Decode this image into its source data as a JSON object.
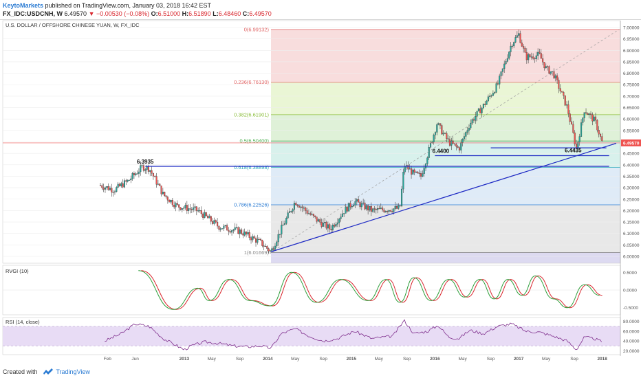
{
  "header": {
    "author": "KeytoMarkets",
    "published": "published on TradingView.com, January 03, 2018 16:42 EST",
    "symbol": "FX_IDC:USDCNH, W",
    "last": "6.49570",
    "change": "−0.00530 (−0.08%)",
    "open": "6.51000",
    "high": "6.51890",
    "low": "6.48460",
    "close": "6.49570",
    "ohlc_labels": {
      "open": "O:",
      "high": "H:",
      "low": "L:",
      "close": "C:"
    }
  },
  "footer": {
    "created_with": "Created with",
    "brand": "TradingView"
  },
  "colors": {
    "up": "#26a69a",
    "down": "#ef5350",
    "candle_wick": "#444444",
    "trend": "#1f2bc4",
    "rvgi_main": "#2e9e3a",
    "rvgi_signal": "#d9272e",
    "rsi_line": "#7e2d8c",
    "rsi_band": "#e8dcf5",
    "price_line": "#ef5350",
    "last_badge": "#ef5350"
  },
  "chart_data": [
    {
      "type": "candlestick",
      "title": "U.S. DOLLAR / OFFSHORE CHINESE YUAN, W, FX_IDC",
      "ylim": [
        5.97,
        7.03
      ],
      "y_ticks": [
        "7.00000",
        "6.95000",
        "6.90000",
        "6.85000",
        "6.80000",
        "6.75000",
        "6.70000",
        "6.65000",
        "6.60000",
        "6.55000",
        "6.50000",
        "6.45000",
        "6.40000",
        "6.35000",
        "6.30000",
        "6.25000",
        "6.20000",
        "6.15000",
        "6.10000",
        "6.05000",
        "6.00000"
      ],
      "x_ticks": [
        "Feb",
        "Jun",
        "2013",
        "May",
        "Sep",
        "2014",
        "May",
        "Sep",
        "2015",
        "May",
        "Sep",
        "2016",
        "May",
        "Sep",
        "2017",
        "May",
        "Sep",
        "2018"
      ],
      "last_value": "6.49570",
      "price_path": [
        [
          "2012-01-01",
          6.31
        ],
        [
          "2012-03-01",
          6.29
        ],
        [
          "2012-05-01",
          6.33
        ],
        [
          "2012-07-01",
          6.39
        ],
        [
          "2012-08-01",
          6.385
        ],
        [
          "2012-10-01",
          6.27
        ],
        [
          "2012-12-01",
          6.22
        ],
        [
          "2013-03-01",
          6.2
        ],
        [
          "2013-06-01",
          6.13
        ],
        [
          "2013-09-01",
          6.11
        ],
        [
          "2013-12-01",
          6.06
        ],
        [
          "2014-01-15",
          6.02
        ],
        [
          "2014-03-01",
          6.12
        ],
        [
          "2014-05-01",
          6.24
        ],
        [
          "2014-08-01",
          6.16
        ],
        [
          "2014-10-01",
          6.12
        ],
        [
          "2014-12-01",
          6.2
        ],
        [
          "2015-01-15",
          6.24
        ],
        [
          "2015-04-01",
          6.2
        ],
        [
          "2015-08-01",
          6.21
        ],
        [
          "2015-08-20",
          6.4
        ],
        [
          "2015-10-01",
          6.36
        ],
        [
          "2015-11-01",
          6.35
        ],
        [
          "2016-01-10",
          6.58
        ],
        [
          "2016-03-01",
          6.5
        ],
        [
          "2016-04-15",
          6.47
        ],
        [
          "2016-06-01",
          6.58
        ],
        [
          "2016-08-01",
          6.66
        ],
        [
          "2016-10-01",
          6.75
        ],
        [
          "2016-12-01",
          6.93
        ],
        [
          "2017-01-01",
          6.97
        ],
        [
          "2017-02-01",
          6.87
        ],
        [
          "2017-04-01",
          6.88
        ],
        [
          "2017-05-01",
          6.82
        ],
        [
          "2017-06-01",
          6.8
        ],
        [
          "2017-08-01",
          6.65
        ],
        [
          "2017-09-10",
          6.47
        ],
        [
          "2017-10-15",
          6.64
        ],
        [
          "2017-12-01",
          6.59
        ],
        [
          "2018-01-01",
          6.4957
        ]
      ],
      "fibonacci": [
        {
          "ratio": "0",
          "label": "0(6.99132)",
          "value": 6.99132,
          "color": "#e06666",
          "fill": "#f7d9d9"
        },
        {
          "ratio": "0.236",
          "label": "0.236(6.76130)",
          "value": 6.7613,
          "color": "#e06666",
          "fill": "#e8f5d0"
        },
        {
          "ratio": "0.382",
          "label": "0.382(6.61901)",
          "value": 6.61901,
          "color": "#8bbd3c",
          "fill": "#dcf0d4"
        },
        {
          "ratio": "0.5",
          "label": "0.5(6.50400)",
          "value": 6.504,
          "color": "#4caf50",
          "fill": "#d4f0ea"
        },
        {
          "ratio": "0.618",
          "label": "0.618(6.38898)",
          "value": 6.38898,
          "color": "#26a6b8",
          "fill": "#dbe9f6"
        },
        {
          "ratio": "0.786",
          "label": "0.786(6.22526)",
          "value": 6.22526,
          "color": "#2a7bd3",
          "fill": "#e6e6e6"
        },
        {
          "ratio": "1",
          "label": "1(6.01669)",
          "value": 6.01669,
          "color": "#888888",
          "fill": "#d9d6f0"
        }
      ],
      "annotations": [
        {
          "text": "6.3935",
          "x": "2012-07-20",
          "value": 6.3935
        },
        {
          "text": "6.4400",
          "x": "2016-02-01",
          "value": 6.44
        },
        {
          "text": "6.4435",
          "x": "2017-09-01",
          "value": 6.4435
        }
      ],
      "horizontal_levels": [
        {
          "value": 6.3935,
          "from": "2012-07-15",
          "to": "2018-01-01"
        },
        {
          "value": 6.474,
          "from": "2016-09-01",
          "to": "2017-12-20"
        },
        {
          "value": 6.44,
          "from": "2016-01-01",
          "to": "2018-01-01"
        }
      ],
      "trendline": {
        "from": [
          "2014-01-15",
          6.02
        ],
        "to": [
          "2018-01-01",
          6.47
        ]
      }
    },
    {
      "type": "line",
      "title": "RVGI (10)",
      "ylim": [
        -0.7,
        0.7
      ],
      "y_ticks": [
        "0.5000",
        "0.0000",
        "-0.5000"
      ],
      "series_peaks": [
        [
          "2012-06-15",
          0.55
        ],
        [
          "2012-11-15",
          -0.55
        ],
        [
          "2013-03-01",
          0.05
        ],
        [
          "2013-04-20",
          -0.3
        ],
        [
          "2013-07-15",
          0.3
        ],
        [
          "2013-10-15",
          -0.3
        ],
        [
          "2014-01-10",
          -0.45
        ],
        [
          "2014-04-15",
          0.5
        ],
        [
          "2014-08-01",
          -0.35
        ],
        [
          "2014-11-15",
          0.3
        ],
        [
          "2015-03-15",
          -0.3
        ],
        [
          "2015-06-01",
          0.3
        ],
        [
          "2015-08-01",
          -0.35
        ],
        [
          "2015-10-01",
          0.35
        ],
        [
          "2015-12-15",
          -0.3
        ],
        [
          "2016-03-01",
          0.3
        ],
        [
          "2016-05-10",
          -0.2
        ],
        [
          "2016-07-15",
          0.3
        ],
        [
          "2016-09-15",
          -0.25
        ],
        [
          "2016-11-15",
          0.3
        ],
        [
          "2017-01-15",
          -0.15
        ],
        [
          "2017-03-15",
          0.4
        ],
        [
          "2017-06-01",
          -0.25
        ],
        [
          "2017-08-01",
          -0.5
        ],
        [
          "2017-10-15",
          0.15
        ],
        [
          "2017-12-20",
          -0.15
        ]
      ]
    },
    {
      "type": "line",
      "title": "RSI (14, close)",
      "ylim": [
        12,
        88
      ],
      "y_ticks": [
        "80.0000",
        "60.0000",
        "40.0000",
        "20.0000"
      ],
      "band": [
        30,
        70
      ],
      "series_path": [
        [
          "2012-01-20",
          40
        ],
        [
          "2012-04-01",
          55
        ],
        [
          "2012-06-01",
          75
        ],
        [
          "2012-08-01",
          70
        ],
        [
          "2012-10-01",
          45
        ],
        [
          "2012-12-01",
          30
        ],
        [
          "2013-01-01",
          22
        ],
        [
          "2013-02-01",
          30
        ],
        [
          "2013-04-01",
          38
        ],
        [
          "2013-06-01",
          35
        ],
        [
          "2013-08-01",
          30
        ],
        [
          "2013-10-01",
          28
        ],
        [
          "2013-12-01",
          30
        ],
        [
          "2014-01-15",
          25
        ],
        [
          "2014-03-01",
          55
        ],
        [
          "2014-05-01",
          65
        ],
        [
          "2014-07-01",
          50
        ],
        [
          "2014-09-01",
          40
        ],
        [
          "2014-11-01",
          45
        ],
        [
          "2015-01-15",
          60
        ],
        [
          "2015-04-01",
          45
        ],
        [
          "2015-07-01",
          50
        ],
        [
          "2015-08-20",
          82
        ],
        [
          "2015-10-01",
          55
        ],
        [
          "2015-12-01",
          60
        ],
        [
          "2016-01-15",
          72
        ],
        [
          "2016-03-01",
          48
        ],
        [
          "2016-04-15",
          45
        ],
        [
          "2016-06-01",
          62
        ],
        [
          "2016-08-01",
          55
        ],
        [
          "2016-10-01",
          70
        ],
        [
          "2016-12-01",
          75
        ],
        [
          "2017-02-01",
          60
        ],
        [
          "2017-04-01",
          58
        ],
        [
          "2017-06-01",
          50
        ],
        [
          "2017-08-01",
          40
        ],
        [
          "2017-09-10",
          22
        ],
        [
          "2017-10-15",
          48
        ],
        [
          "2017-12-01",
          44
        ],
        [
          "2018-01-01",
          38
        ]
      ]
    }
  ]
}
